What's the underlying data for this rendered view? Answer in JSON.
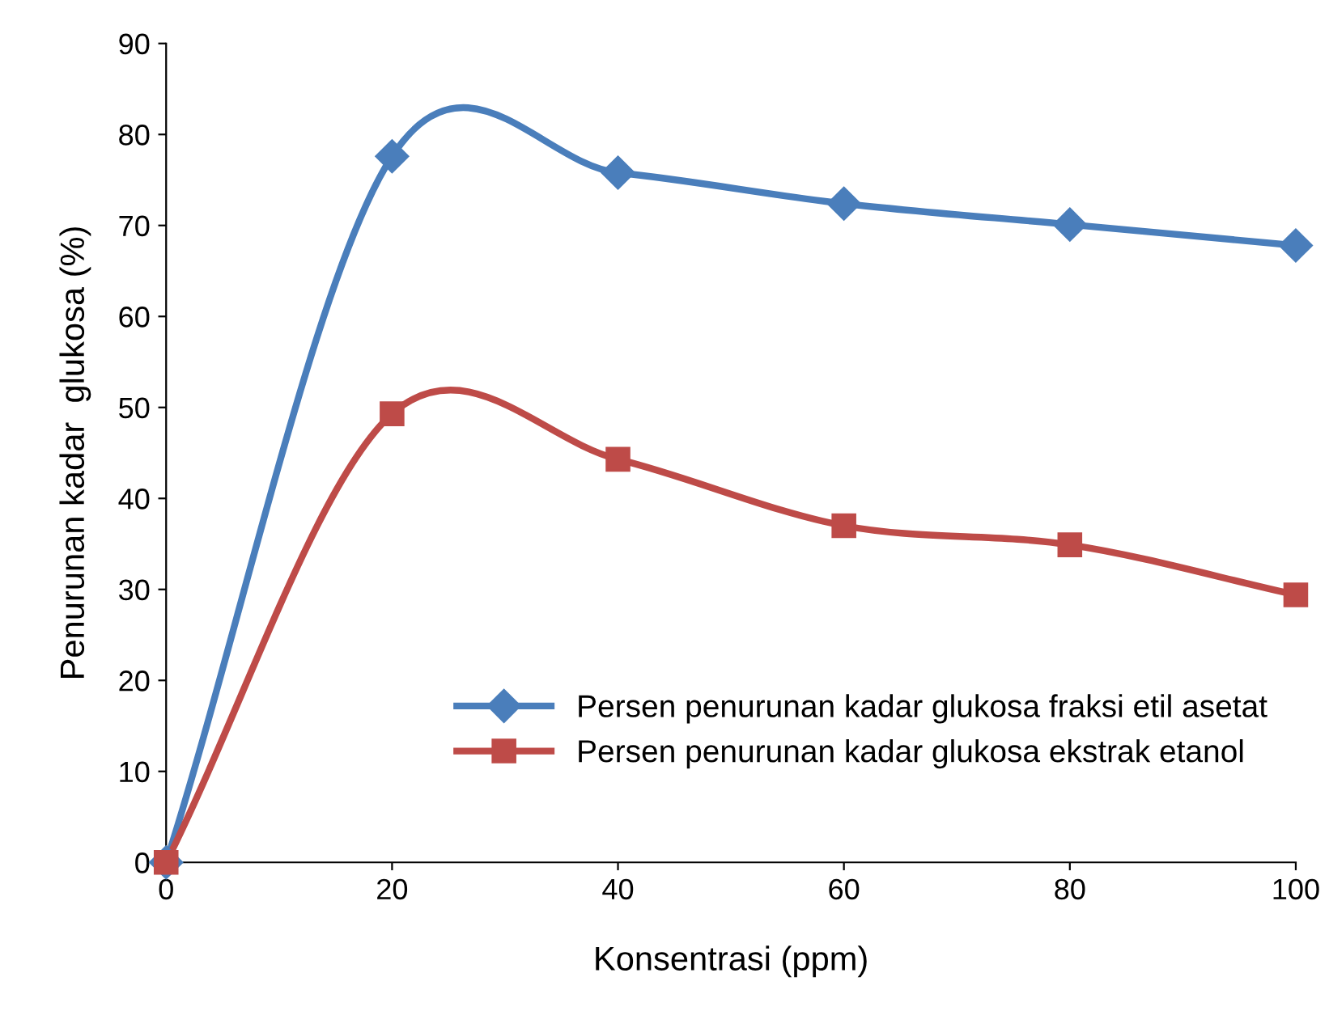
{
  "chart_data": {
    "type": "line",
    "xlabel": "Konsentrasi (ppm)",
    "ylabel": "Penurunan kadar  glukosa (%)",
    "x": [
      0,
      20,
      40,
      60,
      80,
      100
    ],
    "series": [
      {
        "name": "Persen penurunan kadar glukosa fraksi etil asetat",
        "color": "#4a7ebb",
        "marker": "diamond",
        "values": [
          0,
          77.6,
          75.8,
          72.4,
          70.1,
          67.8
        ]
      },
      {
        "name": "Persen penurunan kadar glukosa ekstrak etanol",
        "color": "#be4b48",
        "marker": "square",
        "values": [
          0,
          49.3,
          44.3,
          37.0,
          34.9,
          29.4
        ]
      }
    ],
    "xlim": [
      0,
      100
    ],
    "xticks": [
      0,
      20,
      40,
      60,
      80,
      100
    ],
    "ylim": [
      0,
      90
    ],
    "yticks": [
      0,
      10,
      20,
      30,
      40,
      50,
      60,
      70,
      80,
      90
    ],
    "grid": false,
    "legend": "bottom right",
    "line_style": "solid"
  }
}
